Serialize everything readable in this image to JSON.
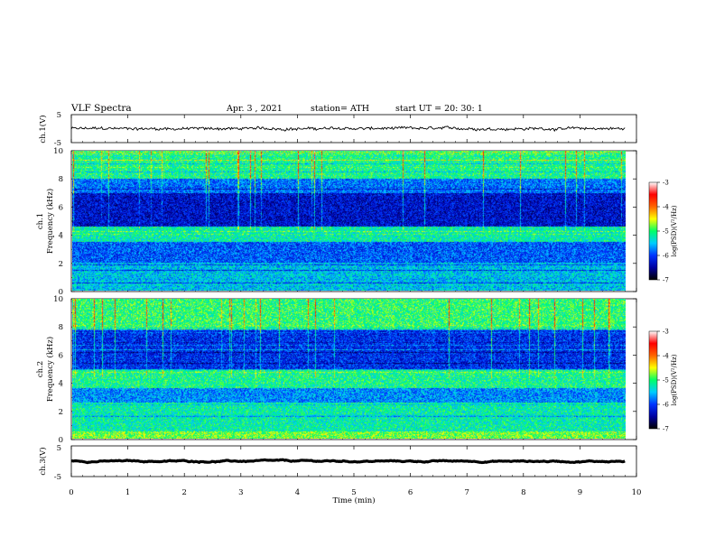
{
  "header": {
    "title": "VLF  Spectra",
    "date": "Apr. 3  , 2021",
    "station": "station= ATH",
    "start": "start  UT  =    20: 30: 1"
  },
  "chart_data": [
    {
      "type": "line",
      "name": "ch1-waveform",
      "ylabel": "ch.1(V)",
      "ylim": [
        -5,
        5
      ],
      "yticks": [
        "5",
        "-5"
      ],
      "xlim": [
        0,
        10
      ],
      "series": [
        {
          "x": [
            0,
            9.8
          ],
          "y_level": 0,
          "y_jitter": 0.45,
          "color": "#000000"
        }
      ]
    },
    {
      "type": "heatmap",
      "name": "ch1-spectrogram",
      "ylabel_top": "ch.1",
      "ylabel": "Frequency  (kHz)",
      "ylim": [
        0,
        10
      ],
      "yticks": [
        "0",
        "2",
        "4",
        "6",
        "8",
        "10"
      ],
      "xlim": [
        0,
        10
      ],
      "data_xmax": 9.8,
      "bands": [
        {
          "from": 8.0,
          "to": 10.0,
          "level": -5.1,
          "note": "broadband noise with green/yellow sferics"
        },
        {
          "from": 7.0,
          "to": 8.0,
          "level": -5.8
        },
        {
          "from": 4.6,
          "to": 7.0,
          "level": -6.3
        },
        {
          "from": 3.5,
          "to": 4.6,
          "level": -5.2
        },
        {
          "from": 2.0,
          "to": 3.5,
          "level": -5.9
        },
        {
          "from": 0.0,
          "to": 2.0,
          "level": -5.5
        }
      ],
      "colorbar": {
        "label": "log(PSD)(V²/Hz)",
        "ticks": [
          "-3",
          "-4",
          "-5",
          "-6",
          "-7"
        ],
        "range": [
          -7,
          -3
        ]
      }
    },
    {
      "type": "heatmap",
      "name": "ch2-spectrogram",
      "ylabel_top": "ch.2",
      "ylabel": "Frequency  (kHz)",
      "ylim": [
        0,
        10
      ],
      "yticks": [
        "0",
        "2",
        "4",
        "6",
        "8",
        "10"
      ],
      "xlim": [
        0,
        10
      ],
      "data_xmax": 9.8,
      "bands": [
        {
          "from": 7.8,
          "to": 10.0,
          "level": -5.0
        },
        {
          "from": 5.0,
          "to": 7.8,
          "level": -6.1
        },
        {
          "from": 3.6,
          "to": 5.0,
          "level": -5.1
        },
        {
          "from": 2.6,
          "to": 3.6,
          "level": -5.7
        },
        {
          "from": 0.5,
          "to": 2.6,
          "level": -5.2
        },
        {
          "from": 0.0,
          "to": 0.5,
          "level": -4.8
        }
      ],
      "colorbar": {
        "label": "log(PSD)(V²/Hz)",
        "ticks": [
          "-3",
          "-4",
          "-5",
          "-6",
          "-7"
        ],
        "range": [
          -7,
          -3
        ]
      }
    },
    {
      "type": "line",
      "name": "ch3-waveform",
      "ylabel": "ch.3(V)",
      "ylim": [
        -5,
        5
      ],
      "yticks": [
        "5",
        "-5"
      ],
      "xlim": [
        0,
        10
      ],
      "series": [
        {
          "x": [
            0,
            9.8
          ],
          "y_level": 0,
          "y_jitter": 0.05,
          "color": "#000000"
        }
      ]
    }
  ],
  "xaxis": {
    "label": "Time  (min)",
    "ticks": [
      "0",
      "1",
      "2",
      "3",
      "4",
      "5",
      "6",
      "7",
      "8",
      "9",
      "10"
    ],
    "range": [
      0,
      10
    ]
  },
  "colors": {
    "colormap": [
      "#000000",
      "#0000a0",
      "#0033ff",
      "#00ccff",
      "#00ff66",
      "#ffff00",
      "#ff6600",
      "#ff0000",
      "#ffffff"
    ]
  }
}
